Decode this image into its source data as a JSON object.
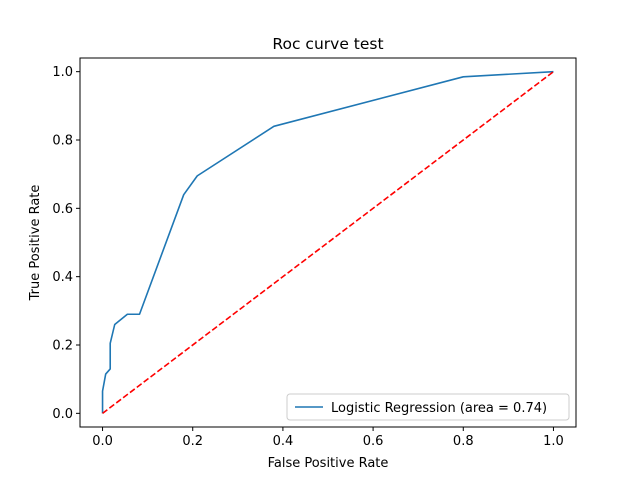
{
  "chart_data": {
    "type": "line",
    "title": "Roc curve test",
    "xlabel": "False Positive Rate",
    "ylabel": "True Positive Rate",
    "xlim": [
      -0.05,
      1.05
    ],
    "ylim": [
      -0.04,
      1.04
    ],
    "xticks": [
      "0.0",
      "0.2",
      "0.4",
      "0.6",
      "0.8",
      "1.0"
    ],
    "yticks": [
      "0.0",
      "0.2",
      "0.4",
      "0.6",
      "0.8",
      "1.0"
    ],
    "grid": false,
    "legend_position": "lower-right",
    "series": [
      {
        "name": "Logistic Regression (area = 0.74)",
        "color": "#1f77b4",
        "style": "solid",
        "x": [
          0.0,
          0.0,
          0.0,
          0.007,
          0.017,
          0.017,
          0.027,
          0.055,
          0.082,
          0.18,
          0.21,
          0.38,
          0.8,
          1.0
        ],
        "y": [
          0.0,
          0.04,
          0.065,
          0.115,
          0.13,
          0.205,
          0.26,
          0.29,
          0.29,
          0.64,
          0.695,
          0.84,
          0.985,
          1.0
        ]
      },
      {
        "name": "",
        "color": "#ff0000",
        "style": "dashed",
        "x": [
          0.0,
          1.0
        ],
        "y": [
          0.0,
          1.0
        ]
      }
    ]
  }
}
